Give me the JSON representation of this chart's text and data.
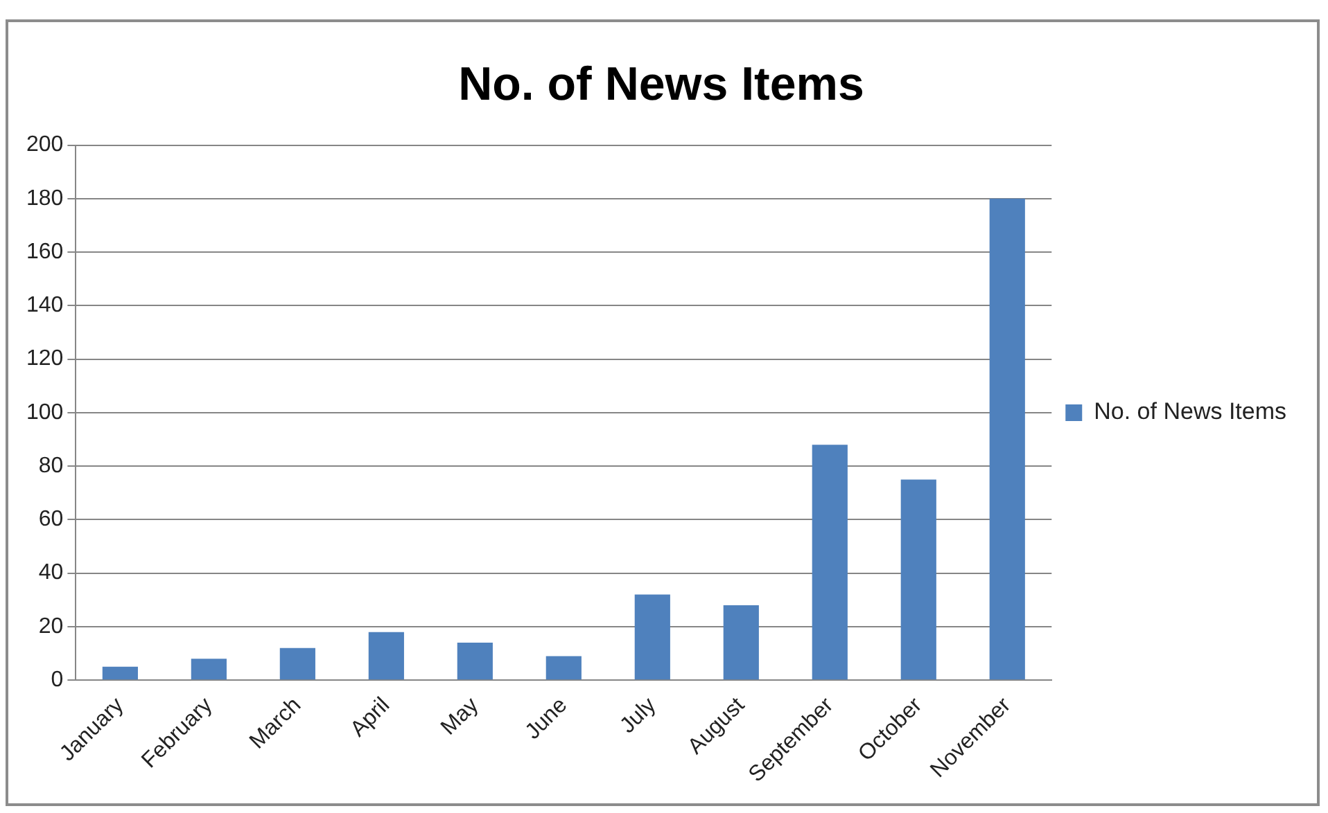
{
  "chart_data": {
    "type": "bar",
    "title": "No. of News Items",
    "categories": [
      "January",
      "February",
      "March",
      "April",
      "May",
      "June",
      "July",
      "August",
      "September",
      "October",
      "November"
    ],
    "series": [
      {
        "name": "No. of News Items",
        "color": "#4f81bd",
        "values": [
          5,
          8,
          12,
          18,
          14,
          9,
          32,
          28,
          88,
          75,
          180
        ]
      }
    ],
    "ylim": [
      0,
      200
    ],
    "yticks": [
      0,
      20,
      40,
      60,
      80,
      100,
      120,
      140,
      160,
      180,
      200
    ],
    "grid": "y",
    "legend": "right"
  }
}
